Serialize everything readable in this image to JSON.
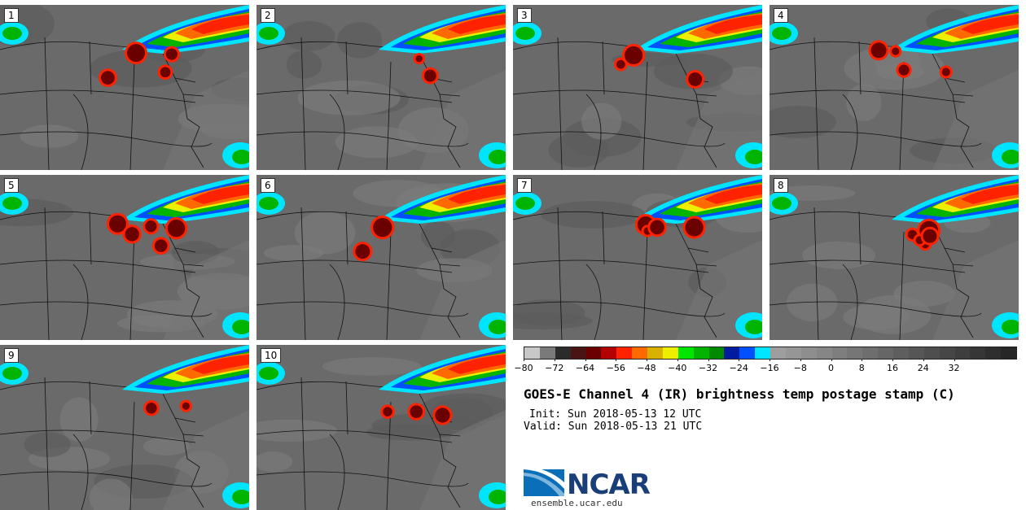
{
  "panels": [
    {
      "label": "1"
    },
    {
      "label": "2"
    },
    {
      "label": "3"
    },
    {
      "label": "4"
    },
    {
      "label": "5"
    },
    {
      "label": "6"
    },
    {
      "label": "7"
    },
    {
      "label": "8"
    },
    {
      "label": "9"
    },
    {
      "label": "10"
    }
  ],
  "colorbar": {
    "colors": [
      "#c8c8c8",
      "#7a7a7a",
      "#2b2b2b",
      "#4b1414",
      "#6a0000",
      "#b30000",
      "#ff2200",
      "#ff6a00",
      "#d9b200",
      "#eeee00",
      "#00e600",
      "#00b400",
      "#008a00",
      "#001aa0",
      "#0050ff",
      "#00e5ff",
      "#9e9e9e",
      "#969696",
      "#8e8e8e",
      "#868686",
      "#7e7e7e",
      "#767676",
      "#6e6e6e",
      "#666666",
      "#5e5e5e",
      "#565656",
      "#4e4e4e",
      "#464646",
      "#3e3e3e",
      "#363636",
      "#2e2e2e",
      "#262626"
    ],
    "ticks": [
      "−80",
      "−72",
      "−64",
      "−56",
      "−48",
      "−40",
      "−32",
      "−24",
      "−16",
      "−8",
      "0",
      "8",
      "16",
      "24",
      "32"
    ]
  },
  "title": "GOES-E Channel 4 (IR) brightness temp postage stamp (C)",
  "init": "Init: Sun 2018-05-13 12 UTC",
  "valid": "Valid: Sun 2018-05-13 21 UTC",
  "logo_text": "NCAR",
  "url": "ensemble.ucar.edu"
}
